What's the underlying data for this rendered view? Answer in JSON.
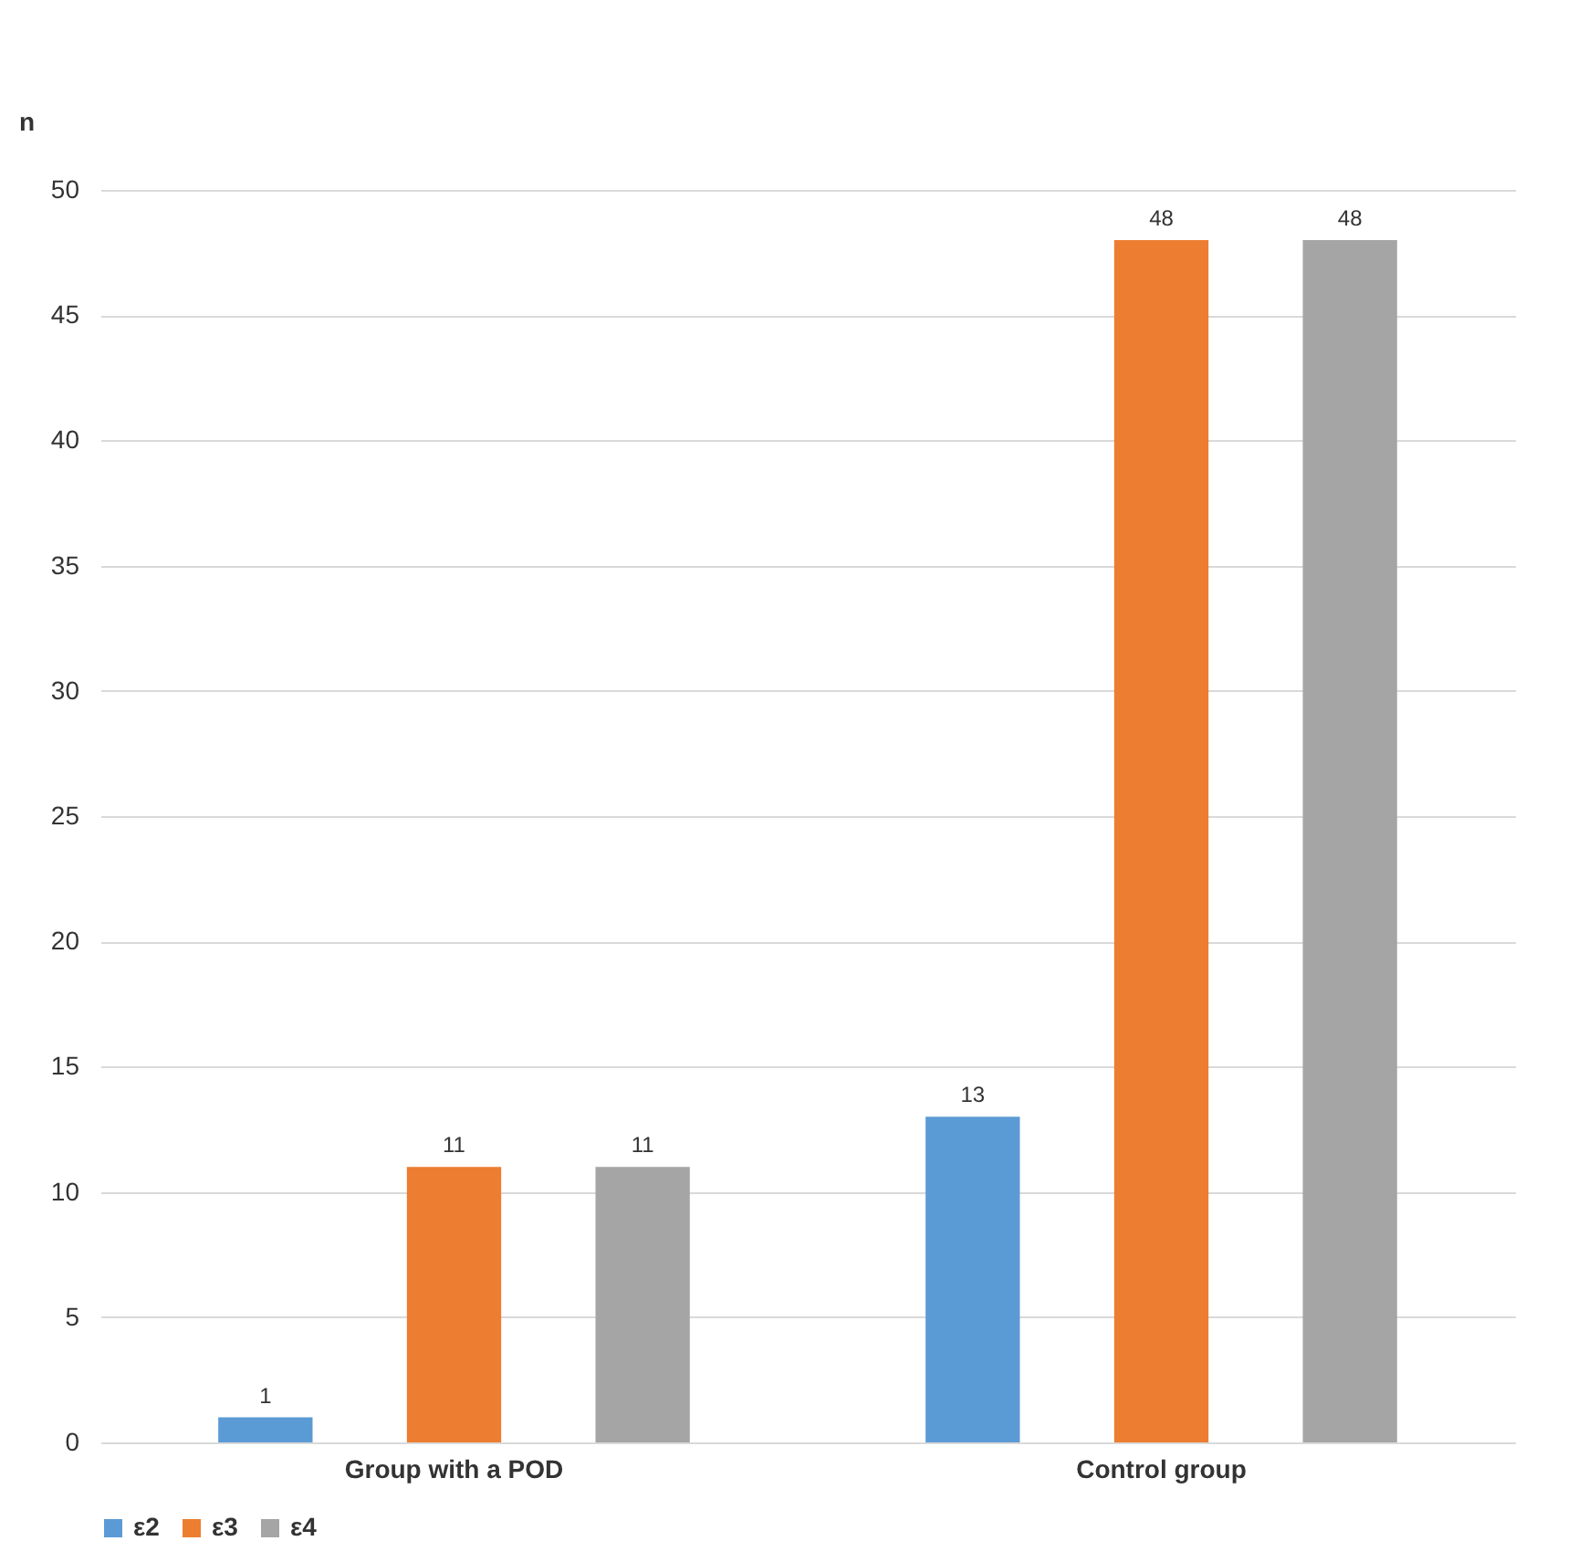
{
  "chart_data": {
    "type": "bar",
    "ylabel": "n",
    "categories": [
      "Group with a POD",
      "Control group"
    ],
    "series": [
      {
        "name": "ε2",
        "color": "#5b9bd5",
        "values": [
          1,
          13
        ]
      },
      {
        "name": "ε3",
        "color": "#ed7d31",
        "values": [
          11,
          48
        ]
      },
      {
        "name": "ε4",
        "color": "#a5a5a5",
        "values": [
          11,
          48
        ]
      }
    ],
    "ylim": [
      0,
      50
    ],
    "yticks": [
      0,
      5,
      10,
      15,
      20,
      25,
      30,
      35,
      40,
      45,
      50
    ],
    "grid": "y",
    "legend": "bottom",
    "data_labels": true
  }
}
